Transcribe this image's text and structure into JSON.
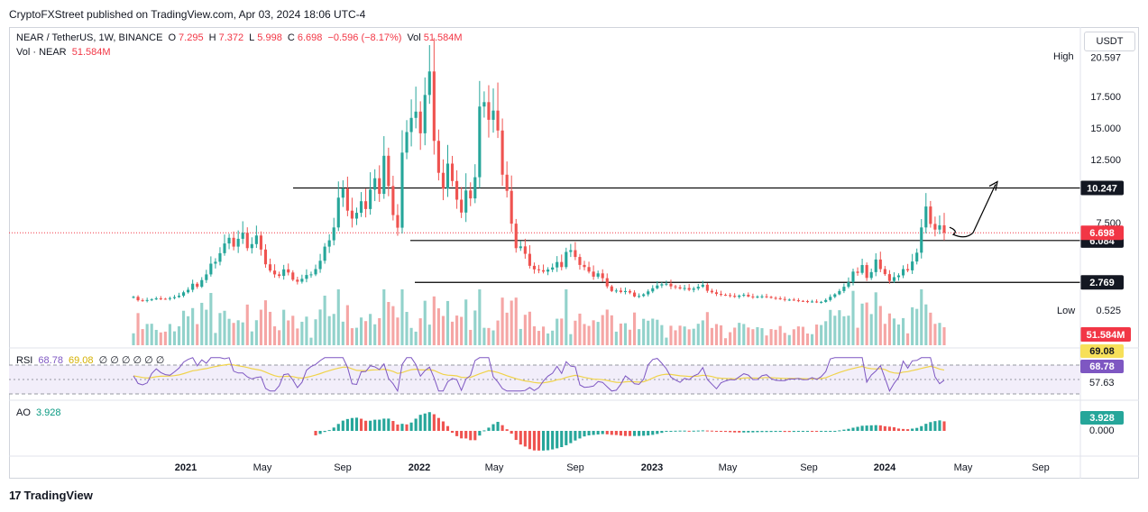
{
  "header": {
    "publisher": "CryptoFXStreet published on TradingView.com, Apr 03, 2024 18:06 UTC-4",
    "currency_button": "USDT"
  },
  "legend": {
    "symbol": "NEAR / TetherUS, 1W, BINANCE",
    "open_label": "O",
    "open": "7.295",
    "high_label": "H",
    "high": "7.372",
    "low_label": "L",
    "low": "5.998",
    "close_label": "C",
    "close": "6.698",
    "change": "−0.596 (−8.17%)",
    "vol_label": "Vol",
    "vol": "51.584M",
    "vol_name": "Vol · NEAR",
    "vol_value": "51.584M",
    "rsi_name": "RSI",
    "rsi_value": "68.78",
    "rsi_ma": "69.08",
    "rsi_extra": "∅ ∅ ∅ ∅ ∅ ∅",
    "ao_name": "AO",
    "ao_value": "3.928"
  },
  "footer": {
    "brand": "TradingView"
  },
  "colors": {
    "up": "#26a69a",
    "down": "#ef5350",
    "vol_up": "#92d2cb",
    "vol_down": "#f5a6a5",
    "rsi": "#7e57c2",
    "rsi_ma": "#f0d34a",
    "ao_up": "#26a69a",
    "ao_down": "#ef5350",
    "price_tag": "#f23645",
    "level_tag": "#131722"
  },
  "chart_data": {
    "type": "candlestick",
    "title": "NEAR / TetherUS, 1W, BINANCE",
    "price_axis_ticks": [
      "20.597",
      "17.500",
      "15.000",
      "12.500",
      "7.500",
      "0.525"
    ],
    "price_markers": {
      "high_label": "High",
      "high": "20.597",
      "low_label": "Low",
      "low": "0.525",
      "current": "6.698",
      "volume": "51.584M"
    },
    "x_tick_labels": [
      "2021",
      "May",
      "Sep",
      "2022",
      "May",
      "Sep",
      "2023",
      "May",
      "Sep",
      "2024",
      "May",
      "Sep"
    ],
    "horizontal_levels": [
      {
        "value": 10.247,
        "label": "10.247"
      },
      {
        "value": 6.084,
        "label": "6.084"
      },
      {
        "value": 2.769,
        "label": "2.769"
      }
    ],
    "rsi_axis": {
      "ma": "69.08",
      "value": "68.78",
      "level": "57.63"
    },
    "ao_axis": {
      "value": "3.928",
      "zero": "0.000"
    },
    "weekly_close": [
      1.62,
      1.35,
      1.3,
      1.37,
      1.42,
      1.5,
      1.47,
      1.46,
      1.52,
      1.6,
      1.71,
      1.98,
      2.18,
      2.66,
      2.42,
      2.95,
      3.4,
      4.25,
      4.4,
      5.08,
      5.85,
      6.3,
      5.6,
      6.22,
      6.7,
      5.48,
      5.8,
      6.48,
      5.37,
      4.2,
      3.7,
      3.4,
      3.28,
      3.8,
      3.55,
      2.98,
      2.82,
      3.05,
      3.35,
      3.4,
      3.82,
      4.48,
      5.6,
      6.1,
      7.12,
      9.48,
      10.2,
      8.45,
      7.82,
      8.28,
      9.2,
      8.58,
      10.12,
      11.02,
      9.78,
      12.8,
      10.4,
      8.1,
      7.1,
      13.05,
      14.68,
      15.8,
      16.3,
      14.58,
      17.62,
      19.48,
      13.98,
      11.45,
      10.2,
      12.18,
      10.8,
      9.32,
      8.3,
      10.05,
      9.42,
      11.1,
      16.7,
      17.05,
      15.65,
      16.38,
      14.8,
      11.3,
      10.02,
      7.42,
      5.48,
      5.62,
      5.03,
      4.08,
      3.8,
      3.73,
      3.62,
      3.78,
      3.95,
      4.38,
      3.98,
      5.18,
      5.32,
      4.78,
      4.15,
      3.98,
      3.62,
      3.22,
      3.48,
      3.1,
      2.45,
      2.08,
      2.12,
      2.0,
      2.08,
      1.96,
      1.65,
      1.69,
      1.82,
      2.05,
      2.3,
      2.52,
      2.62,
      2.66,
      2.45,
      2.38,
      2.28,
      2.32,
      2.18,
      2.28,
      2.42,
      2.58,
      2.1,
      1.98,
      1.85,
      1.78,
      1.76,
      1.7,
      1.62,
      1.72,
      1.78,
      1.65,
      1.58,
      1.64,
      1.66,
      1.62,
      1.54,
      1.5,
      1.45,
      1.38,
      1.4,
      1.35,
      1.3,
      1.28,
      1.24,
      1.25,
      1.18,
      1.22,
      1.37,
      1.62,
      1.82,
      2.08,
      2.42,
      2.78,
      3.62,
      3.52,
      4.14,
      3.12,
      3.58,
      4.58,
      3.82,
      3.42,
      2.88,
      3.18,
      3.32,
      3.82,
      3.72,
      4.42,
      5.12,
      7.12,
      8.78,
      7.4,
      6.95,
      7.29,
      6.7
    ]
  }
}
